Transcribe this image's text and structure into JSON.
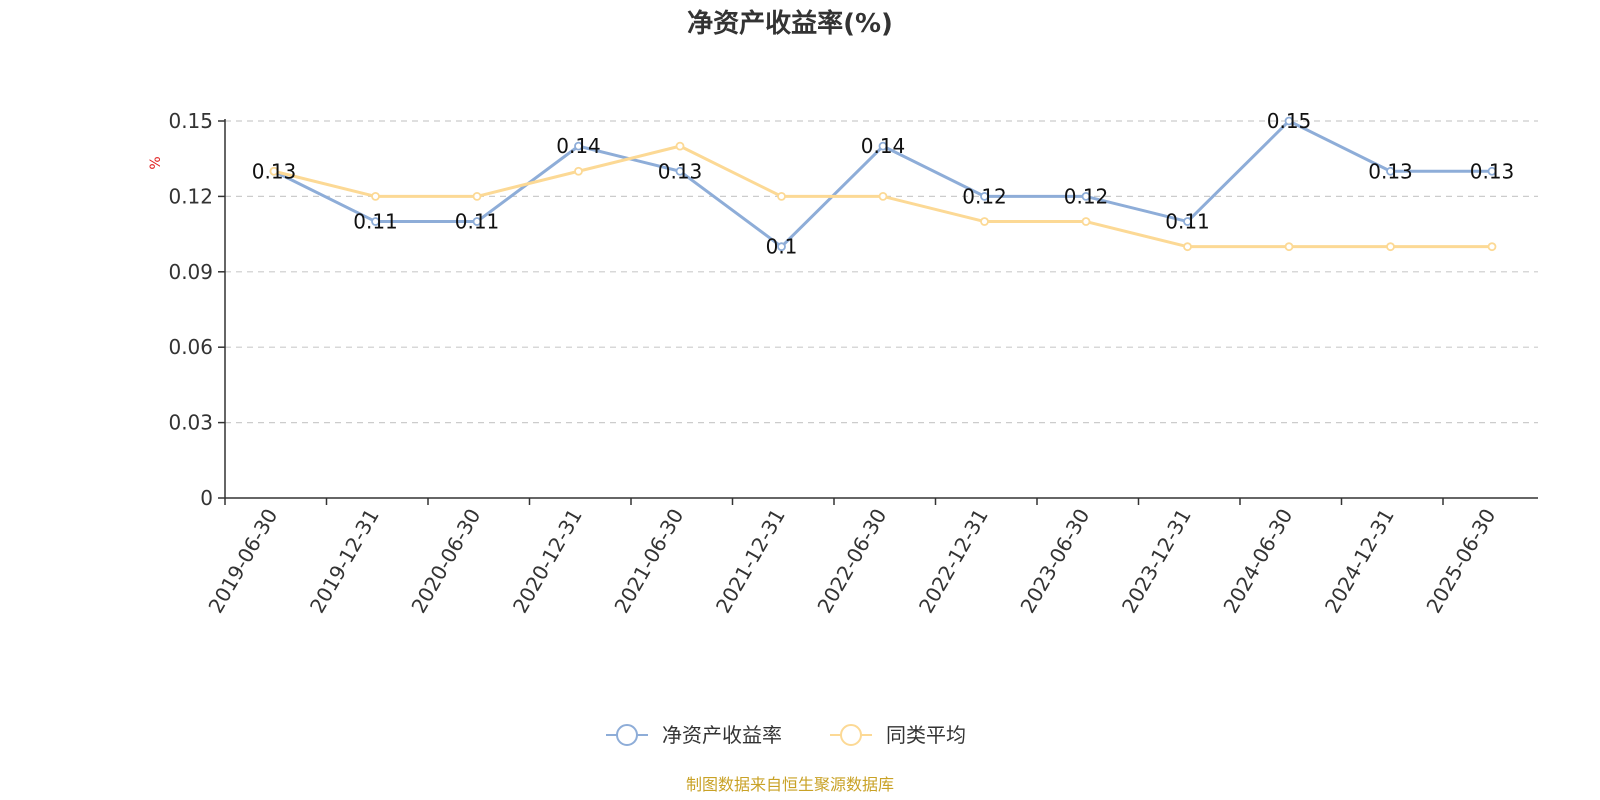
{
  "colors": {
    "series_1": "#8eadd8",
    "series_2": "#fcd995",
    "unit": "#e02020",
    "source": "#c9a227",
    "grid": "#cccccc",
    "axis": "#333333"
  },
  "source_text": "制图数据来自恒生聚源数据库",
  "chart_data": {
    "type": "line",
    "title": "净资产收益率(%)",
    "xlabel": "",
    "ylabel": "%",
    "categories": [
      "2019-06-30",
      "2019-12-31",
      "2020-06-30",
      "2020-12-31",
      "2021-06-30",
      "2021-12-31",
      "2022-06-30",
      "2022-12-31",
      "2023-06-30",
      "2023-12-31",
      "2024-06-30",
      "2024-12-31",
      "2025-06-30"
    ],
    "series": [
      {
        "name": "净资产收益率",
        "values": [
          0.13,
          0.11,
          0.11,
          0.14,
          0.13,
          0.1,
          0.14,
          0.12,
          0.12,
          0.11,
          0.15,
          0.13,
          0.13
        ],
        "data_labels": [
          "0.13",
          "0.11",
          "0.11",
          "0.14",
          "0.13",
          "0.1",
          "0.14",
          "0.12",
          "0.12",
          "0.11",
          "0.15",
          "0.13",
          "0.13"
        ]
      },
      {
        "name": "同类平均",
        "values": [
          0.13,
          0.12,
          0.12,
          0.13,
          0.14,
          0.12,
          0.12,
          0.11,
          0.11,
          0.1,
          0.1,
          0.1,
          0.1
        ]
      }
    ],
    "ylim": [
      0,
      0.15
    ],
    "yticks": [
      "0",
      "0.03",
      "0.06",
      "0.09",
      "0.12",
      "0.15"
    ],
    "grid": true,
    "legend_position": "bottom-center"
  }
}
